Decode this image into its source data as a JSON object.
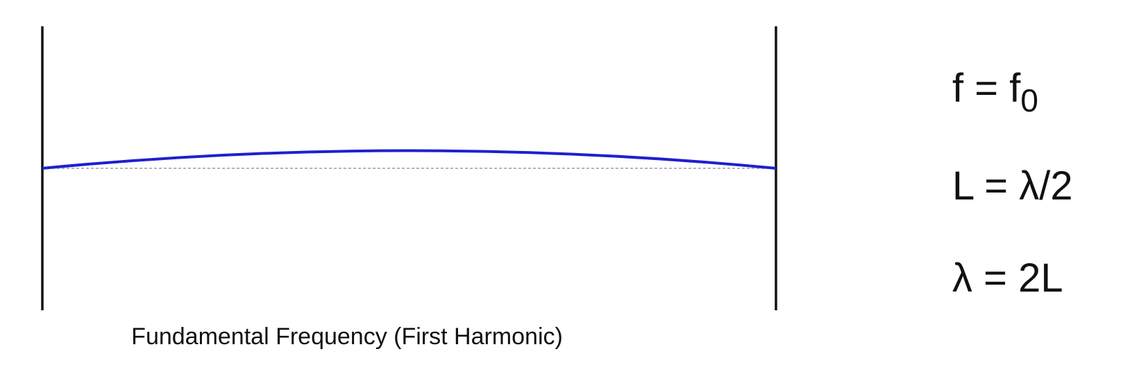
{
  "diagram": {
    "caption": "Fundamental Frequency (First Harmonic)",
    "equations": [
      {
        "lhs": "f",
        "op": " = ",
        "rhs": "f",
        "rhs_sub": "0"
      },
      {
        "lhs": "L",
        "op": " = ",
        "rhs": "λ/2"
      },
      {
        "lhs": "λ",
        "op": " = ",
        "rhs": "2L"
      }
    ],
    "colors": {
      "string": "#1f1fd0",
      "rest_line": "#9a9aaa",
      "supports": "#111111",
      "text": "#111111"
    }
  }
}
